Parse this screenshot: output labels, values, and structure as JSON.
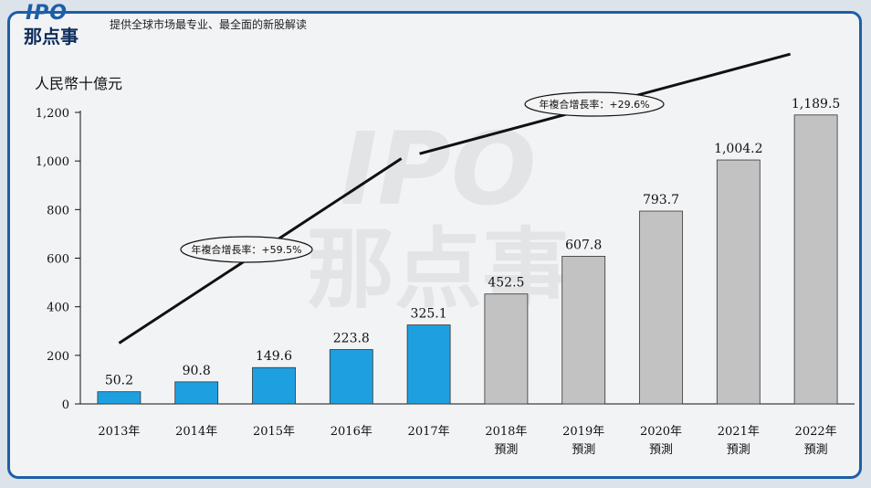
{
  "header": {
    "logo_ipo": "IPO",
    "logo_cn": "那点事",
    "tagline": "提供全球市场最专业、最全面的新股解读"
  },
  "watermark": {
    "line1": "IPO",
    "line2": "那点事"
  },
  "chart_data": {
    "type": "bar",
    "unit_label": "人民幣十億元",
    "categories": [
      [
        "2013年"
      ],
      [
        "2014年"
      ],
      [
        "2015年"
      ],
      [
        "2016年"
      ],
      [
        "2017年"
      ],
      [
        "2018年",
        "預測"
      ],
      [
        "2019年",
        "預測"
      ],
      [
        "2020年",
        "預測"
      ],
      [
        "2021年",
        "預測"
      ],
      [
        "2022年",
        "預測"
      ]
    ],
    "values": [
      50.2,
      90.8,
      149.6,
      223.8,
      325.1,
      452.5,
      607.8,
      793.7,
      1004.2,
      1189.5
    ],
    "value_labels": [
      "50.2",
      "90.8",
      "149.6",
      "223.8",
      "325.1",
      "452.5",
      "607.8",
      "793.7",
      "1,004.2",
      "1,189.5"
    ],
    "bar_colors": [
      "#1ea0e0",
      "#1ea0e0",
      "#1ea0e0",
      "#1ea0e0",
      "#1ea0e0",
      "#c2c2c2",
      "#c2c2c2",
      "#c2c2c2",
      "#c2c2c2",
      "#c2c2c2"
    ],
    "ylim": [
      0,
      1200
    ],
    "yticks": [
      0,
      200,
      400,
      600,
      800,
      1000,
      1200
    ],
    "ytick_labels": [
      "0",
      "200",
      "400",
      "600",
      "800",
      "1,000",
      "1,200"
    ],
    "cagr_annotations": [
      {
        "text": "年複合增長率：+59.5%",
        "from_index": 0,
        "to_index": 4
      },
      {
        "text": "年複合增長率：+29.6%",
        "from_index": 4,
        "to_index": 9
      }
    ]
  }
}
